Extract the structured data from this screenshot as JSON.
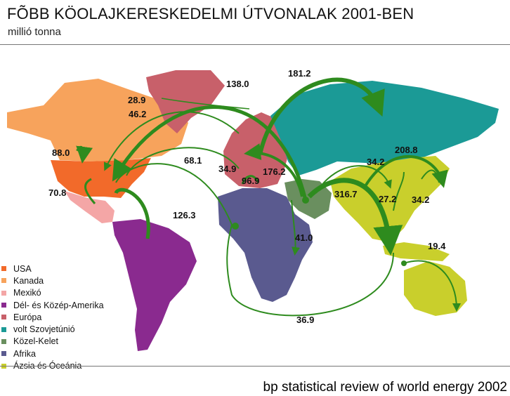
{
  "title": "FÕBB KÖOLAJKERESKEDELMI ÚTVONALAK 2001-BEN",
  "subtitle": "millió tonna",
  "source": "bp statistical review of world energy 2002",
  "legend": [
    {
      "label": "USA",
      "color": "#f26a2a"
    },
    {
      "label": "Kanada",
      "color": "#f7a35c"
    },
    {
      "label": "Mexikó",
      "color": "#f4a6a6"
    },
    {
      "label": "Dél- és Közép-Amerika",
      "color": "#8a2a8f"
    },
    {
      "label": "Európa",
      "color": "#c8606a"
    },
    {
      "label": "volt Szovjetúnió",
      "color": "#1b9a96"
    },
    {
      "label": "Közel-Kelet",
      "color": "#6a8f5f"
    },
    {
      "label": "Afrika",
      "color": "#5a5a8f"
    },
    {
      "label": "Ázsia és Óceánia",
      "color": "#c9cf2c"
    }
  ],
  "flows": [
    {
      "label": "181.2"
    },
    {
      "label": "138.0"
    },
    {
      "label": "28.9"
    },
    {
      "label": "46.2"
    },
    {
      "label": "208.8"
    },
    {
      "label": "88.0"
    },
    {
      "label": "68.1"
    },
    {
      "label": "34.9"
    },
    {
      "label": "176.2"
    },
    {
      "label": "96.9"
    },
    {
      "label": "34.2"
    },
    {
      "label": "70.8"
    },
    {
      "label": "316.7"
    },
    {
      "label": "27.2"
    },
    {
      "label": "34.2"
    },
    {
      "label": "126.3"
    },
    {
      "label": "41.0"
    },
    {
      "label": "19.4"
    },
    {
      "label": "36.9"
    }
  ]
}
